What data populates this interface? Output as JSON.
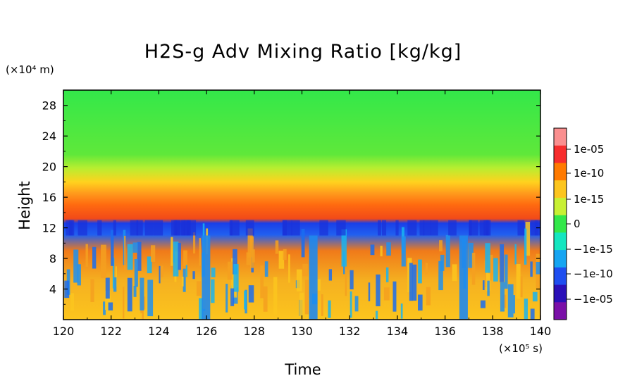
{
  "chart_data": {
    "type": "heatmap",
    "title": "H2S-g Adv Mixing Ratio [kg/kg]",
    "xlabel": "Time",
    "ylabel": "Height",
    "x_unit": "(×10⁵ s)",
    "y_unit": "(×10⁴ m)",
    "xlim": [
      120,
      140
    ],
    "ylim": [
      0,
      30
    ],
    "x_ticks": [
      "120",
      "122",
      "124",
      "126",
      "128",
      "130",
      "132",
      "134",
      "136",
      "138",
      "140"
    ],
    "y_ticks": [
      "4",
      "8",
      "12",
      "16",
      "20",
      "24",
      "28"
    ],
    "layers": [
      {
        "from": 0,
        "to": 6,
        "value": "-1e-10 to 1e-15 (patchy blue/yellow)"
      },
      {
        "from": 6,
        "to": 11,
        "value": "-1e-10 to 1e-12 (orange/blue bands)"
      },
      {
        "from": 11.5,
        "to": 13,
        "value": "-1e-05 (blue)"
      },
      {
        "from": 13,
        "to": 16,
        "value": "1e-10 to 1e-05 (red/orange)"
      },
      {
        "from": 16,
        "to": 20,
        "value": "1e-15 (yellow-green)"
      },
      {
        "from": 20,
        "to": 30,
        "value": "~0 (green)"
      }
    ],
    "colorbar": {
      "labels": [
        "1e-05",
        "1e-10",
        "1e-15",
        "0",
        "−1e-15",
        "−1e-10",
        "−1e-05"
      ],
      "colors": [
        "#fa8f8f",
        "#f72d2d",
        "#ff7a00",
        "#fcc51e",
        "#c8f034",
        "#33e84a",
        "#14e6c0",
        "#16a5f2",
        "#1f4ef0",
        "#2a10b8",
        "#7a10a8"
      ]
    }
  }
}
